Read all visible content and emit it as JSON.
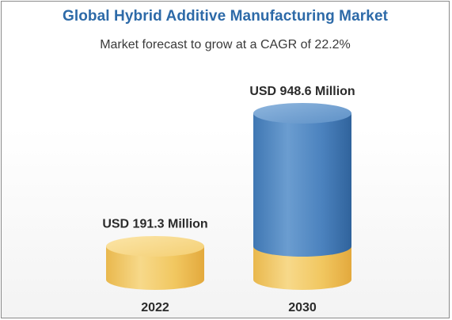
{
  "title": "Global Hybrid Additive Manufacturing Market",
  "subtitle": "Market forecast to grow at a CAGR of 22.2%",
  "chart_data": {
    "type": "bar",
    "title": "Global Hybrid Additive Manufacturing Market",
    "subtitle": "Market forecast to grow at a CAGR of 22.2%",
    "categories": [
      "2022",
      "2030"
    ],
    "values": [
      191.3,
      948.6
    ],
    "data_labels": [
      "USD 191.3 Million",
      "USD 948.6 Million"
    ],
    "unit": "USD Million",
    "colors": {
      "base": "#f2c96a",
      "growth": "#4f86c0",
      "title": "#2d6aa8"
    }
  }
}
